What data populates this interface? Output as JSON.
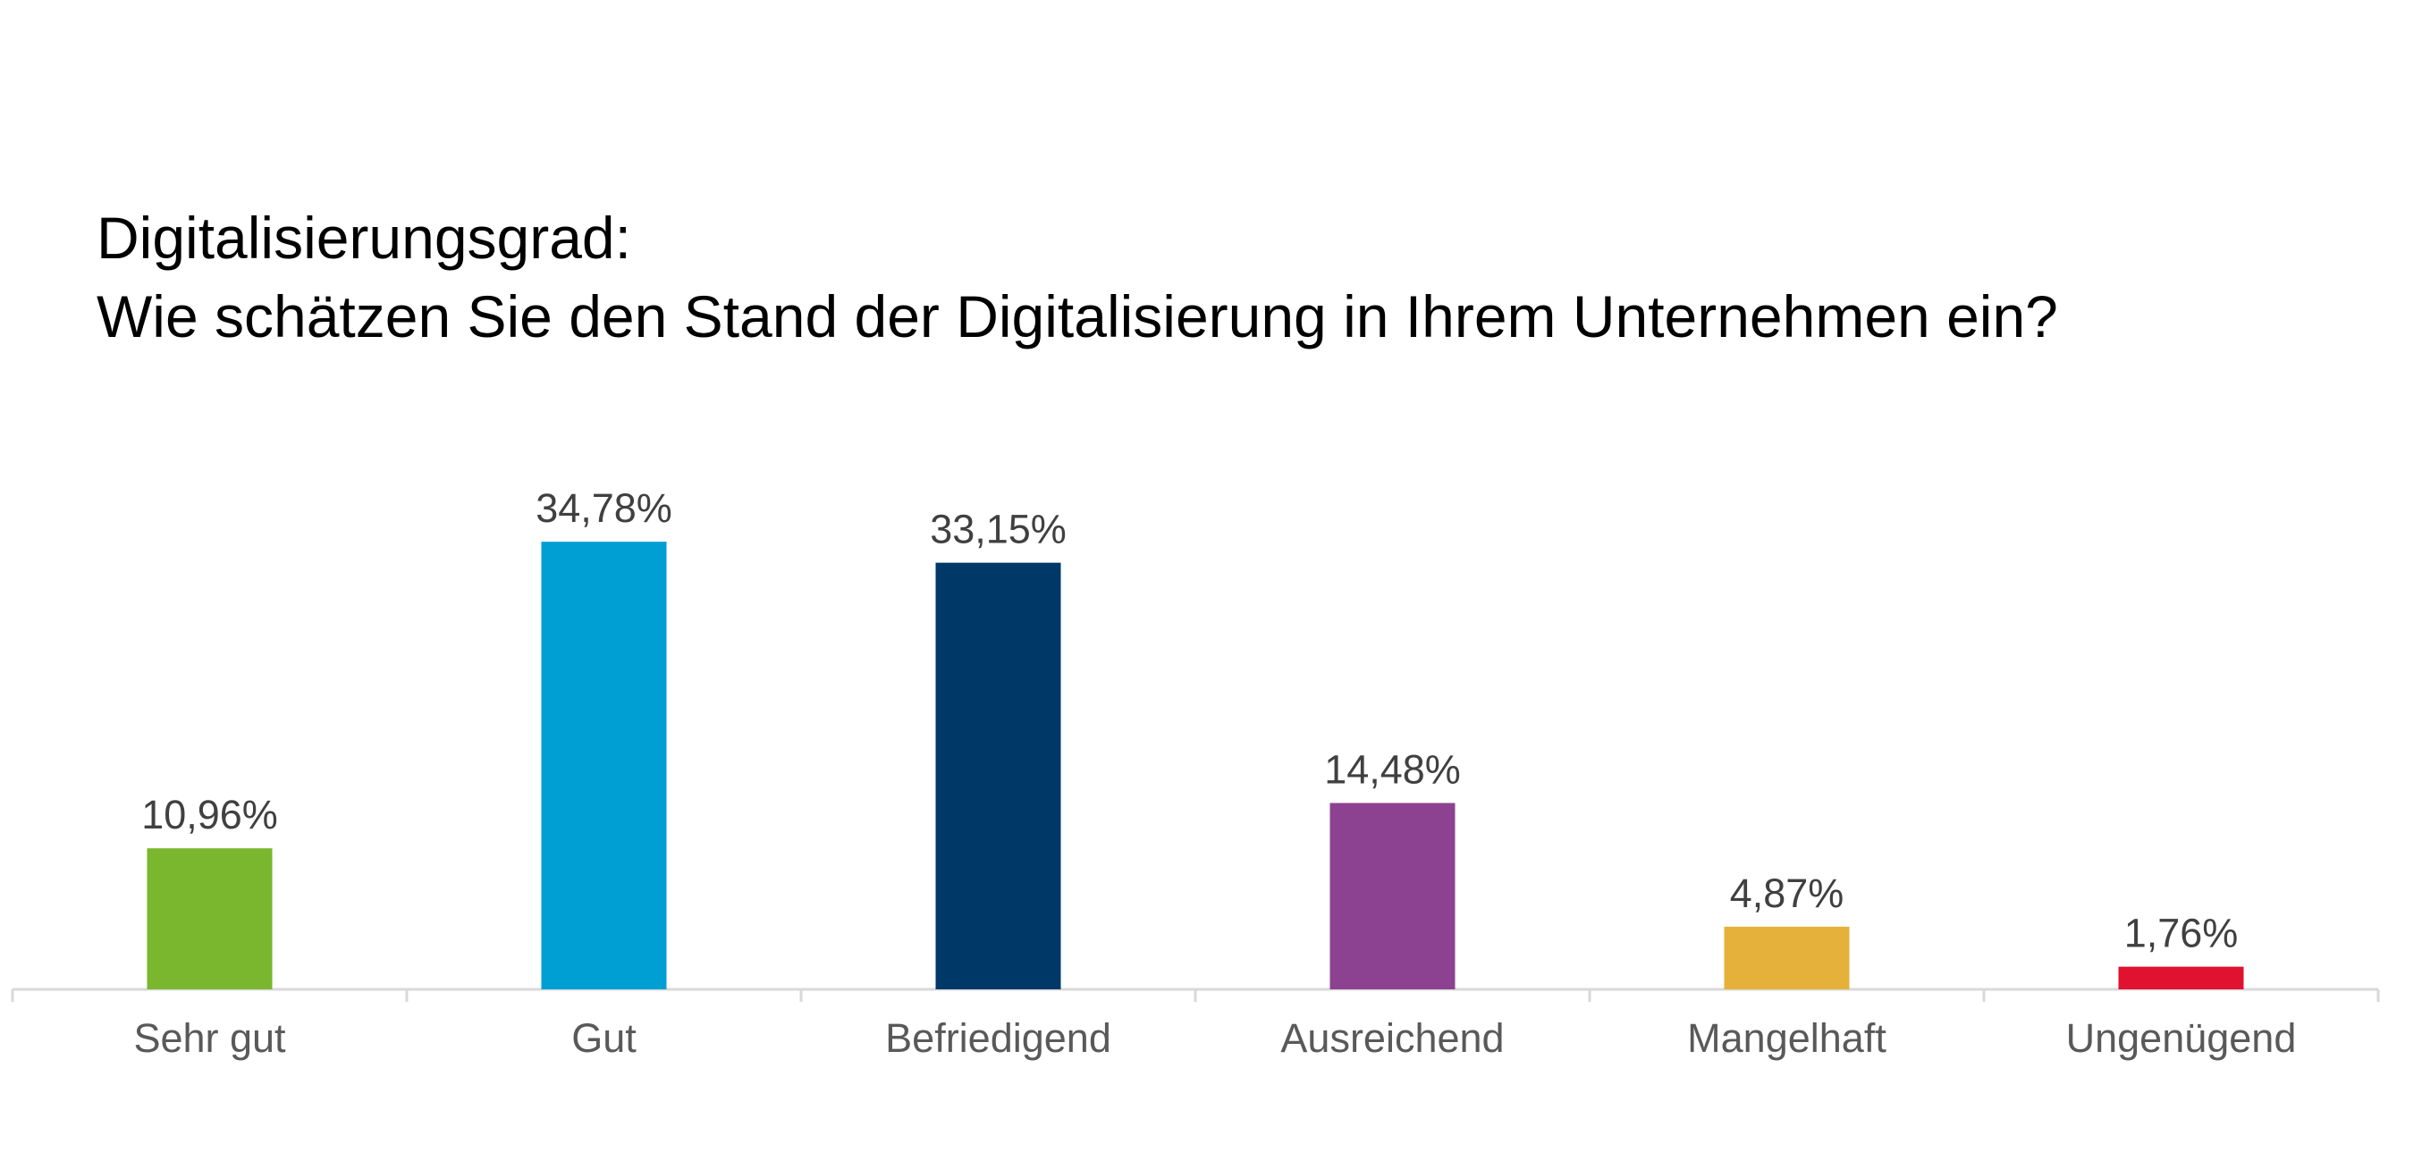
{
  "chart_data": {
    "type": "bar",
    "title_line1": "Digitalisierungsgrad:",
    "title_line2": "Wie schätzen Sie den Stand der Digitalisierung in Ihrem Unternehmen ein?",
    "categories": [
      "Sehr gut",
      "Gut",
      "Befriedigend",
      "Ausreichend",
      "Mangelhaft",
      "Ungenügend"
    ],
    "values": [
      10.96,
      34.78,
      33.15,
      14.48,
      4.87,
      1.76
    ],
    "value_labels": [
      "10,96%",
      "34,78%",
      "33,15%",
      "14,48%",
      "4,87%",
      "1,76%"
    ],
    "colors": [
      "#7AB72E",
      "#009FD3",
      "#003868",
      "#8C4290",
      "#E6B13A",
      "#E0122F"
    ],
    "axis_color": "#D9D9D9",
    "ylim": [
      0,
      40
    ],
    "grid": false,
    "xlabel": "",
    "ylabel": ""
  }
}
